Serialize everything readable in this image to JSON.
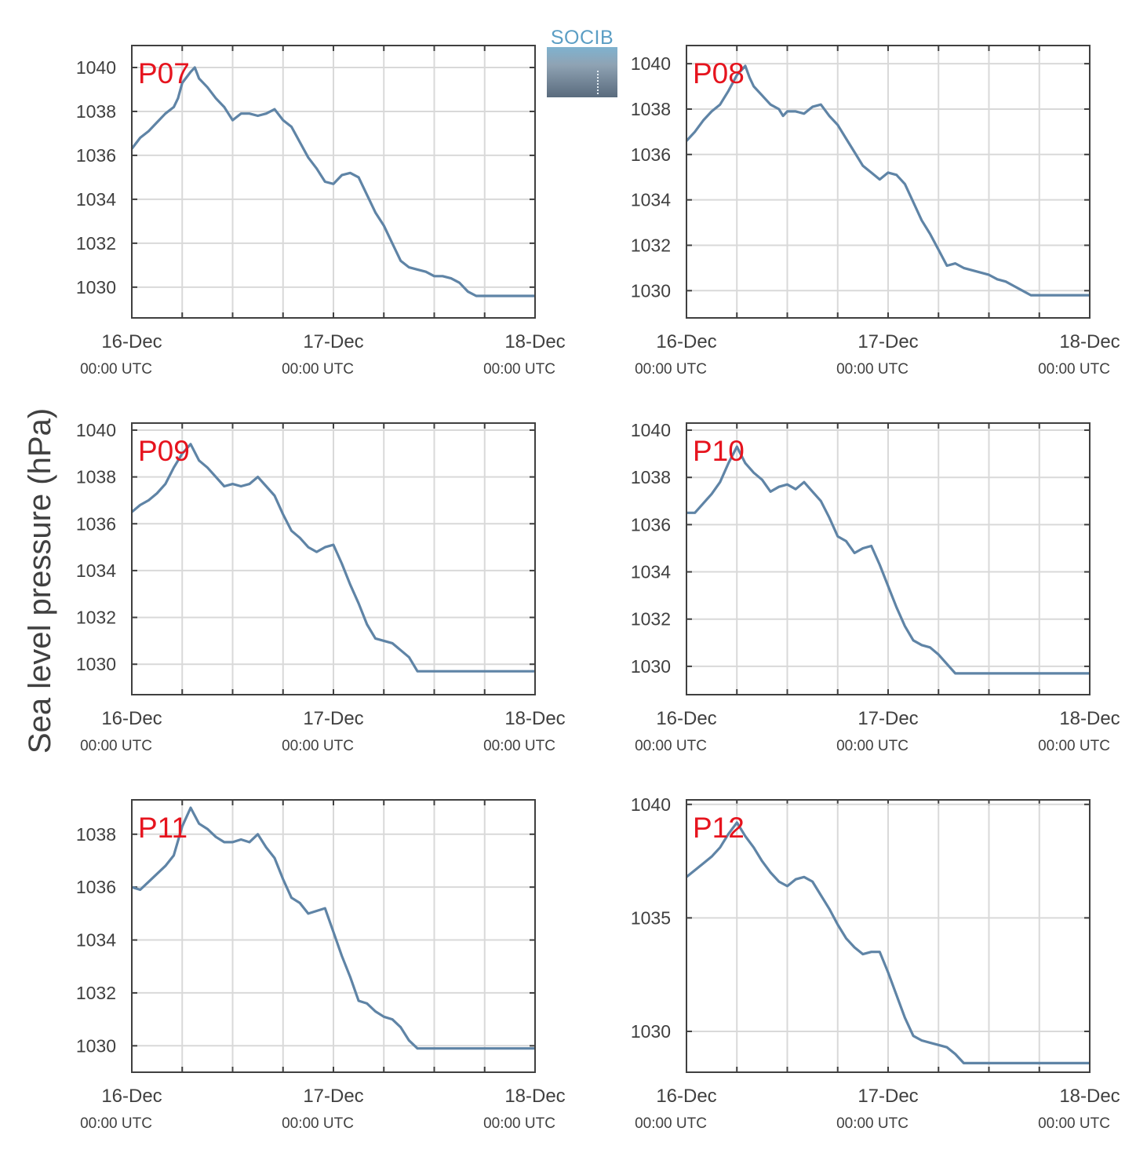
{
  "figure": {
    "ylabel": "Sea level pressure (hPa)",
    "logo_text": "SOCIB",
    "colors": {
      "line": "#5f84a6",
      "label": "#e6141e",
      "axis": "#404040",
      "grid": "#d9d9d9"
    }
  },
  "chart_data": [
    {
      "type": "line",
      "title": "P07",
      "x_ticks": [
        "16-Dec",
        "17-Dec",
        "18-Dec"
      ],
      "x_subticks": [
        "00:00 UTC",
        "00:00 UTC",
        "00:00 UTC"
      ],
      "xlim": [
        0,
        48
      ],
      "ylim": [
        1028.6,
        1041.0
      ],
      "yticks": [
        1030,
        1032,
        1034,
        1036,
        1038,
        1040
      ],
      "series": [
        {
          "x": [
            0,
            1,
            2,
            3,
            4,
            5,
            5.5,
            6,
            7,
            7.5,
            8,
            9,
            10,
            11,
            11.5,
            12,
            13,
            14,
            15,
            16,
            17,
            18,
            19,
            20,
            21,
            22,
            23,
            24,
            25,
            26,
            27,
            28,
            29,
            30,
            31,
            32,
            33,
            34,
            35,
            36,
            37,
            38,
            39,
            40,
            41,
            42,
            43,
            44,
            45,
            46,
            47,
            48
          ],
          "values": [
            1036.3,
            1036.8,
            1037.1,
            1037.5,
            1037.9,
            1038.2,
            1038.6,
            1039.3,
            1039.8,
            1040.0,
            1039.5,
            1039.1,
            1038.6,
            1038.2,
            1037.9,
            1037.6,
            1037.9,
            1037.9,
            1037.8,
            1037.9,
            1038.1,
            1037.6,
            1037.3,
            1036.6,
            1035.9,
            1035.4,
            1034.8,
            1034.7,
            1035.1,
            1035.2,
            1035.0,
            1034.2,
            1033.4,
            1032.8,
            1032.0,
            1031.2,
            1030.9,
            1030.8,
            1030.7,
            1030.5,
            1030.5,
            1030.4,
            1030.2,
            1029.8,
            1029.6,
            1029.6,
            1029.6,
            1029.6,
            1029.6,
            1029.6,
            1029.6,
            1029.6
          ]
        }
      ]
    },
    {
      "type": "line",
      "title": "P08",
      "x_ticks": [
        "16-Dec",
        "17-Dec",
        "18-Dec"
      ],
      "x_subticks": [
        "00:00 UTC",
        "00:00 UTC",
        "00:00 UTC"
      ],
      "xlim": [
        0,
        48
      ],
      "ylim": [
        1028.8,
        1040.8
      ],
      "yticks": [
        1030,
        1032,
        1034,
        1036,
        1038,
        1040
      ],
      "series": [
        {
          "x": [
            0,
            1,
            2,
            3,
            4,
            5,
            6,
            7,
            7.5,
            8,
            9,
            10,
            11,
            11.5,
            12,
            13,
            14,
            15,
            16,
            17,
            18,
            19,
            20,
            21,
            22,
            23,
            24,
            25,
            26,
            27,
            28,
            29,
            30,
            31,
            32,
            33,
            34,
            35,
            36,
            37,
            38,
            39,
            40,
            41,
            42,
            43,
            44,
            45,
            46,
            47,
            48
          ],
          "values": [
            1036.6,
            1037.0,
            1037.5,
            1037.9,
            1038.2,
            1038.8,
            1039.5,
            1039.9,
            1039.4,
            1039.0,
            1038.6,
            1038.2,
            1038.0,
            1037.7,
            1037.9,
            1037.9,
            1037.8,
            1038.1,
            1038.2,
            1037.7,
            1037.3,
            1036.7,
            1036.1,
            1035.5,
            1035.2,
            1034.9,
            1035.2,
            1035.1,
            1034.7,
            1033.9,
            1033.1,
            1032.5,
            1031.8,
            1031.1,
            1031.2,
            1031.0,
            1030.9,
            1030.8,
            1030.7,
            1030.5,
            1030.4,
            1030.2,
            1030.0,
            1029.8,
            1029.8,
            1029.8,
            1029.8,
            1029.8,
            1029.8,
            1029.8,
            1029.8
          ]
        }
      ]
    },
    {
      "type": "line",
      "title": "P09",
      "x_ticks": [
        "16-Dec",
        "17-Dec",
        "18-Dec"
      ],
      "x_subticks": [
        "00:00 UTC",
        "00:00 UTC",
        "00:00 UTC"
      ],
      "xlim": [
        0,
        48
      ],
      "ylim": [
        1028.7,
        1040.3
      ],
      "yticks": [
        1030,
        1032,
        1034,
        1036,
        1038,
        1040
      ],
      "series": [
        {
          "x": [
            0,
            1,
            2,
            3,
            4,
            5,
            6,
            7,
            8,
            9,
            10,
            11,
            12,
            13,
            14,
            15,
            16,
            17,
            18,
            19,
            20,
            21,
            22,
            23,
            24,
            25,
            26,
            27,
            28,
            29,
            30,
            31,
            32,
            33,
            34,
            35,
            36,
            37,
            38,
            39,
            40,
            41,
            42,
            43,
            44,
            45,
            46,
            47,
            48
          ],
          "values": [
            1036.5,
            1036.8,
            1037.0,
            1037.3,
            1037.7,
            1038.4,
            1039.0,
            1039.4,
            1038.7,
            1038.4,
            1038.0,
            1037.6,
            1037.7,
            1037.6,
            1037.7,
            1038.0,
            1037.6,
            1037.2,
            1036.4,
            1035.7,
            1035.4,
            1035.0,
            1034.8,
            1035.0,
            1035.1,
            1034.3,
            1033.4,
            1032.6,
            1031.7,
            1031.1,
            1031.0,
            1030.9,
            1030.6,
            1030.3,
            1029.7,
            1029.7,
            1029.7,
            1029.7,
            1029.7,
            1029.7,
            1029.7,
            1029.7,
            1029.7,
            1029.7,
            1029.7,
            1029.7,
            1029.7,
            1029.7,
            1029.7
          ]
        }
      ]
    },
    {
      "type": "line",
      "title": "P10",
      "x_ticks": [
        "16-Dec",
        "17-Dec",
        "18-Dec"
      ],
      "x_subticks": [
        "00:00 UTC",
        "00:00 UTC",
        "00:00 UTC"
      ],
      "xlim": [
        0,
        48
      ],
      "ylim": [
        1028.8,
        1040.3
      ],
      "yticks": [
        1030,
        1032,
        1034,
        1036,
        1038,
        1040
      ],
      "series": [
        {
          "x": [
            0,
            1,
            2,
            3,
            4,
            5,
            6,
            7,
            8,
            9,
            10,
            11,
            12,
            13,
            14,
            15,
            16,
            17,
            18,
            19,
            20,
            21,
            22,
            23,
            24,
            25,
            26,
            27,
            28,
            29,
            30,
            31,
            32,
            33,
            34,
            35,
            36,
            37,
            38,
            39,
            40,
            41,
            42,
            43,
            44,
            45,
            46,
            47,
            48
          ],
          "values": [
            1036.5,
            1036.5,
            1036.9,
            1037.3,
            1037.8,
            1038.6,
            1039.3,
            1038.6,
            1038.2,
            1037.9,
            1037.4,
            1037.6,
            1037.7,
            1037.5,
            1037.8,
            1037.4,
            1037.0,
            1036.3,
            1035.5,
            1035.3,
            1034.8,
            1035.0,
            1035.1,
            1034.3,
            1033.4,
            1032.5,
            1031.7,
            1031.1,
            1030.9,
            1030.8,
            1030.5,
            1030.1,
            1029.7,
            1029.7,
            1029.7,
            1029.7,
            1029.7,
            1029.7,
            1029.7,
            1029.7,
            1029.7,
            1029.7,
            1029.7,
            1029.7,
            1029.7,
            1029.7,
            1029.7,
            1029.7,
            1029.7
          ]
        }
      ]
    },
    {
      "type": "line",
      "title": "P11",
      "x_ticks": [
        "16-Dec",
        "17-Dec",
        "18-Dec"
      ],
      "x_subticks": [
        "00:00 UTC",
        "00:00 UTC",
        "00:00 UTC"
      ],
      "xlim": [
        0,
        48
      ],
      "ylim": [
        1029.0,
        1039.3
      ],
      "yticks": [
        1030,
        1032,
        1034,
        1036,
        1038
      ],
      "series": [
        {
          "x": [
            0,
            1,
            2,
            3,
            4,
            5,
            6,
            7,
            8,
            9,
            10,
            11,
            12,
            13,
            14,
            15,
            16,
            17,
            18,
            19,
            20,
            21,
            22,
            23,
            24,
            25,
            26,
            27,
            28,
            29,
            30,
            31,
            32,
            33,
            34,
            35,
            36,
            37,
            38,
            39,
            40,
            41,
            42,
            43,
            44,
            45,
            46,
            47,
            48
          ],
          "values": [
            1036.0,
            1035.9,
            1036.2,
            1036.5,
            1036.8,
            1037.2,
            1038.3,
            1039.0,
            1038.4,
            1038.2,
            1037.9,
            1037.7,
            1037.7,
            1037.8,
            1037.7,
            1038.0,
            1037.5,
            1037.1,
            1036.3,
            1035.6,
            1035.4,
            1035.0,
            1035.1,
            1035.2,
            1034.3,
            1033.4,
            1032.6,
            1031.7,
            1031.6,
            1031.3,
            1031.1,
            1031.0,
            1030.7,
            1030.2,
            1029.9,
            1029.9,
            1029.9,
            1029.9,
            1029.9,
            1029.9,
            1029.9,
            1029.9,
            1029.9,
            1029.9,
            1029.9,
            1029.9,
            1029.9,
            1029.9,
            1029.9
          ]
        }
      ]
    },
    {
      "type": "line",
      "title": "P12",
      "x_ticks": [
        "16-Dec",
        "17-Dec",
        "18-Dec"
      ],
      "x_subticks": [
        "00:00 UTC",
        "00:00 UTC",
        "00:00 UTC"
      ],
      "xlim": [
        0,
        48
      ],
      "ylim": [
        1028.2,
        1040.2
      ],
      "yticks": [
        1030,
        1035,
        1040
      ],
      "series": [
        {
          "x": [
            0,
            1,
            2,
            3,
            4,
            5,
            6,
            7,
            8,
            9,
            10,
            11,
            12,
            13,
            14,
            15,
            16,
            17,
            18,
            19,
            20,
            21,
            22,
            23,
            24,
            25,
            26,
            27,
            28,
            29,
            30,
            31,
            32,
            33,
            34,
            35,
            36,
            37,
            38,
            39,
            40,
            41,
            42,
            43,
            44,
            45,
            46,
            47,
            48
          ],
          "values": [
            1036.8,
            1037.1,
            1037.4,
            1037.7,
            1038.1,
            1038.7,
            1039.2,
            1038.6,
            1038.1,
            1037.5,
            1037.0,
            1036.6,
            1036.4,
            1036.7,
            1036.8,
            1036.6,
            1036.0,
            1035.4,
            1034.7,
            1034.1,
            1033.7,
            1033.4,
            1033.5,
            1033.5,
            1032.6,
            1031.6,
            1030.6,
            1029.8,
            1029.6,
            1029.5,
            1029.4,
            1029.3,
            1029.0,
            1028.6,
            1028.6,
            1028.6,
            1028.6,
            1028.6,
            1028.6,
            1028.6,
            1028.6,
            1028.6,
            1028.6,
            1028.6,
            1028.6,
            1028.6,
            1028.6,
            1028.6,
            1028.6
          ]
        }
      ]
    }
  ]
}
